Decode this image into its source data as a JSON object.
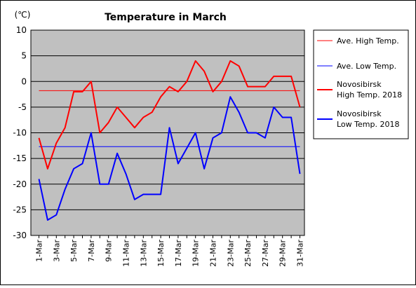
{
  "chart_data": {
    "type": "line",
    "title": "Temperature in March",
    "unit_label": "(℃)",
    "ylim": [
      -30,
      10
    ],
    "yticks": [
      10,
      5,
      0,
      -5,
      -10,
      -15,
      -20,
      -25,
      -30
    ],
    "grid": true,
    "background_color": "#c0c0c0",
    "legend_position": "right",
    "x": [
      "1-Mar",
      "2-Mar",
      "3-Mar",
      "4-Mar",
      "5-Mar",
      "6-Mar",
      "7-Mar",
      "8-Mar",
      "9-Mar",
      "10-Mar",
      "11-Mar",
      "12-Mar",
      "13-Mar",
      "14-Mar",
      "15-Mar",
      "16-Mar",
      "17-Mar",
      "18-Mar",
      "19-Mar",
      "20-Mar",
      "21-Mar",
      "22-Mar",
      "23-Mar",
      "24-Mar",
      "25-Mar",
      "26-Mar",
      "27-Mar",
      "28-Mar",
      "29-Mar",
      "30-Mar",
      "31-Mar"
    ],
    "xtick_labels": [
      "1-Mar",
      "3-Mar",
      "5-Mar",
      "7-Mar",
      "9-Mar",
      "11-Mar",
      "13-Mar",
      "15-Mar",
      "17-Mar",
      "19-Mar",
      "21-Mar",
      "23-Mar",
      "25-Mar",
      "27-Mar",
      "29-Mar",
      "31-Mar"
    ],
    "series": [
      {
        "name": "Ave. High Temp.",
        "color": "#ff0000",
        "width": 1,
        "constant": -1.8
      },
      {
        "name": "Ave. Low Temp.",
        "color": "#0000ff",
        "width": 1,
        "constant": -12.7
      },
      {
        "name": "Novosibirsk High Temp. 2018",
        "legend_lines": [
          "Novosibirsk",
          "High Temp. 2018"
        ],
        "color": "#ff0000",
        "width": 2,
        "values": [
          -11,
          -17,
          -12,
          -9,
          -2,
          -2,
          0,
          -10,
          -8,
          -5,
          -7,
          -9,
          -7,
          -6,
          -3,
          -1,
          -2,
          0,
          4,
          2,
          -2,
          0,
          4,
          3,
          -1,
          -1,
          -1,
          1,
          1,
          1,
          -5
        ]
      },
      {
        "name": "Novosibirsk Low Temp. 2018",
        "legend_lines": [
          "Novosibirsk",
          "Low Temp. 2018"
        ],
        "color": "#0000ff",
        "width": 2,
        "values": [
          -19,
          -27,
          -26,
          -21,
          -17,
          -16,
          -10,
          -20,
          -20,
          -14,
          -18,
          -23,
          -22,
          -22,
          -22,
          -9,
          -16,
          -13,
          -10,
          -17,
          -11,
          -10,
          -3,
          -6,
          -10,
          -10,
          -11,
          -5,
          -7,
          -7,
          -18
        ]
      }
    ]
  }
}
